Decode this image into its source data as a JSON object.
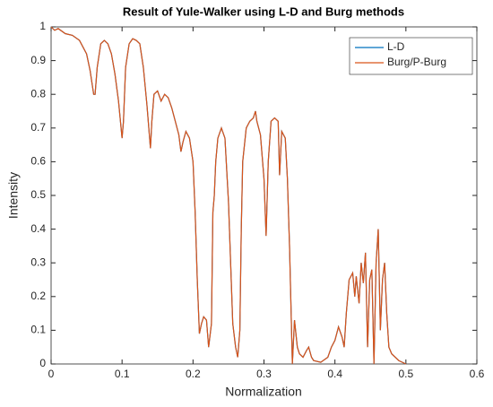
{
  "chart_data": {
    "type": "line",
    "title": "Result of Yule-Walker using L-D and Burg methods",
    "x_label": "Normalization",
    "y_label": "Intensity",
    "x": [
      0,
      0.005,
      0.01,
      0.02,
      0.03,
      0.04,
      0.05,
      0.055,
      0.06,
      0.062,
      0.065,
      0.07,
      0.075,
      0.08,
      0.085,
      0.09,
      0.095,
      0.1,
      0.102,
      0.105,
      0.11,
      0.115,
      0.12,
      0.125,
      0.13,
      0.135,
      0.14,
      0.142,
      0.145,
      0.15,
      0.155,
      0.16,
      0.165,
      0.17,
      0.175,
      0.18,
      0.183,
      0.186,
      0.19,
      0.195,
      0.2,
      0.203,
      0.206,
      0.209,
      0.212,
      0.215,
      0.219,
      0.222,
      0.226,
      0.228,
      0.23,
      0.232,
      0.235,
      0.24,
      0.245,
      0.25,
      0.253,
      0.256,
      0.26,
      0.263,
      0.266,
      0.268,
      0.27,
      0.275,
      0.28,
      0.285,
      0.288,
      0.29,
      0.295,
      0.3,
      0.303,
      0.306,
      0.31,
      0.315,
      0.32,
      0.322,
      0.325,
      0.33,
      0.333,
      0.336,
      0.34,
      0.343,
      0.347,
      0.35,
      0.355,
      0.36,
      0.363,
      0.367,
      0.37,
      0.38,
      0.39,
      0.395,
      0.4,
      0.405,
      0.41,
      0.413,
      0.416,
      0.42,
      0.425,
      0.428,
      0.43,
      0.434,
      0.437,
      0.44,
      0.443,
      0.446,
      0.449,
      0.452,
      0.455,
      0.458,
      0.461,
      0.464,
      0.467,
      0.47,
      0.473,
      0.476,
      0.48,
      0.49,
      0.5
    ],
    "series": [
      {
        "name": "L-D",
        "color": "#0072bd",
        "values": [
          1,
          0.99,
          0.995,
          0.98,
          0.975,
          0.96,
          0.92,
          0.87,
          0.8,
          0.8,
          0.88,
          0.95,
          0.96,
          0.95,
          0.92,
          0.86,
          0.78,
          0.67,
          0.72,
          0.88,
          0.95,
          0.965,
          0.96,
          0.95,
          0.88,
          0.77,
          0.64,
          0.72,
          0.8,
          0.81,
          0.78,
          0.8,
          0.79,
          0.76,
          0.72,
          0.68,
          0.63,
          0.66,
          0.69,
          0.67,
          0.6,
          0.45,
          0.25,
          0.09,
          0.12,
          0.14,
          0.13,
          0.05,
          0.12,
          0.45,
          0.5,
          0.6,
          0.67,
          0.7,
          0.67,
          0.48,
          0.3,
          0.12,
          0.05,
          0.02,
          0.1,
          0.4,
          0.6,
          0.7,
          0.72,
          0.73,
          0.75,
          0.72,
          0.68,
          0.55,
          0.38,
          0.6,
          0.72,
          0.73,
          0.72,
          0.56,
          0.69,
          0.67,
          0.55,
          0.35,
          0,
          0.13,
          0.05,
          0.03,
          0.02,
          0.04,
          0.05,
          0.02,
          0.01,
          0.005,
          0.02,
          0.05,
          0.07,
          0.11,
          0.08,
          0.05,
          0.15,
          0.25,
          0.27,
          0.2,
          0.26,
          0.18,
          0.3,
          0.24,
          0.33,
          0.05,
          0.25,
          0.28,
          0,
          0.3,
          0.4,
          0.1,
          0.25,
          0.3,
          0.15,
          0.05,
          0.03,
          0.01,
          0
        ]
      },
      {
        "name": "Burg/P-Burg",
        "color": "#d95319",
        "values": [
          1,
          0.99,
          0.995,
          0.98,
          0.975,
          0.96,
          0.92,
          0.87,
          0.8,
          0.8,
          0.88,
          0.95,
          0.96,
          0.95,
          0.92,
          0.86,
          0.78,
          0.67,
          0.72,
          0.88,
          0.95,
          0.965,
          0.96,
          0.95,
          0.88,
          0.77,
          0.64,
          0.72,
          0.8,
          0.81,
          0.78,
          0.8,
          0.79,
          0.76,
          0.72,
          0.68,
          0.63,
          0.66,
          0.69,
          0.67,
          0.6,
          0.45,
          0.25,
          0.09,
          0.12,
          0.14,
          0.13,
          0.05,
          0.12,
          0.45,
          0.5,
          0.6,
          0.67,
          0.7,
          0.67,
          0.48,
          0.3,
          0.12,
          0.05,
          0.02,
          0.1,
          0.4,
          0.6,
          0.7,
          0.72,
          0.73,
          0.75,
          0.72,
          0.68,
          0.55,
          0.38,
          0.6,
          0.72,
          0.73,
          0.72,
          0.56,
          0.69,
          0.67,
          0.55,
          0.35,
          0,
          0.13,
          0.05,
          0.03,
          0.02,
          0.04,
          0.05,
          0.02,
          0.01,
          0.005,
          0.02,
          0.05,
          0.07,
          0.11,
          0.08,
          0.05,
          0.15,
          0.25,
          0.27,
          0.2,
          0.26,
          0.18,
          0.3,
          0.24,
          0.33,
          0.05,
          0.25,
          0.28,
          0,
          0.3,
          0.4,
          0.1,
          0.25,
          0.3,
          0.15,
          0.05,
          0.03,
          0.01,
          0
        ]
      }
    ],
    "xlim": [
      0,
      0.6
    ],
    "xticks": [
      0,
      0.1,
      0.2,
      0.3,
      0.4,
      0.5,
      0.6
    ],
    "ylim": [
      0,
      1
    ],
    "yticks": [
      0,
      0.1,
      0.2,
      0.3,
      0.4,
      0.5,
      0.6,
      0.7,
      0.8,
      0.9,
      1
    ],
    "legend": "northeast"
  }
}
